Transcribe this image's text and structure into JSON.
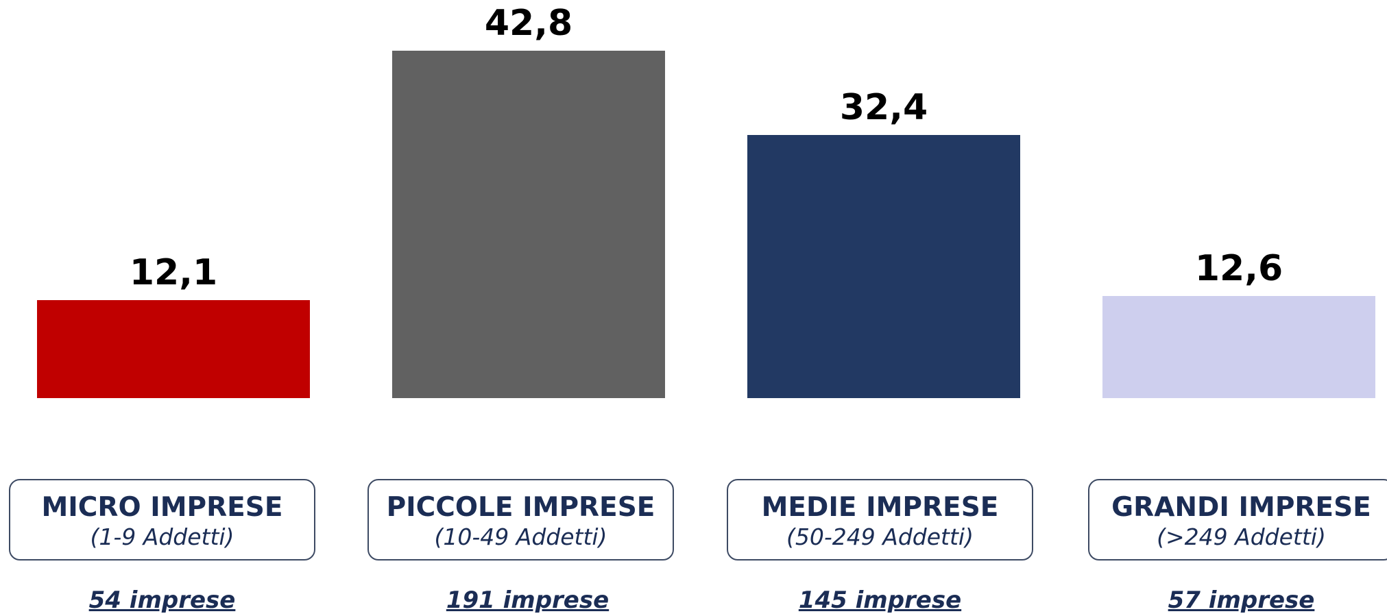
{
  "chart_data": {
    "type": "bar",
    "categories": [
      "MICRO IMPRESE",
      "PICCOLE IMPRESE",
      "MEDIE IMPRESE",
      "GRANDI IMPRESE"
    ],
    "values": [
      12.1,
      42.8,
      32.4,
      12.6
    ],
    "value_labels": [
      "12,1",
      "42,8",
      "32,4",
      "12,6"
    ],
    "colors": [
      "#c00000",
      "#616161",
      "#223963",
      "#cecfee"
    ],
    "ylim": [
      0,
      42.8
    ],
    "grid": false
  },
  "categories": [
    {
      "name": "MICRO IMPRESE",
      "range": "(1-9 Addetti)",
      "count": "54 imprese"
    },
    {
      "name": "PICCOLE IMPRESE",
      "range": "(10-49 Addetti)",
      "count": "191 imprese"
    },
    {
      "name": "MEDIE IMPRESE",
      "range": "(50-249 Addetti)",
      "count": "145 imprese"
    },
    {
      "name": "GRANDI IMPRESE",
      "range": "(>249 Addetti)",
      "count": "57 imprese"
    }
  ]
}
